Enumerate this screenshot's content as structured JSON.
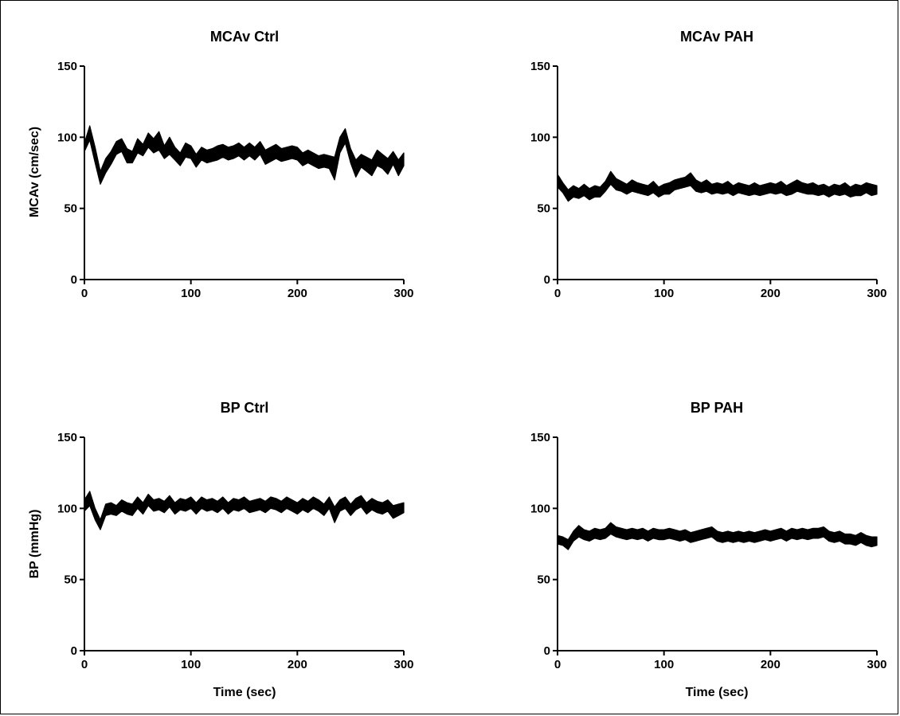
{
  "chart_data": [
    {
      "type": "line",
      "title": "MCAv Ctrl",
      "xlabel": "",
      "ylabel": "MCAv (cm/sec)",
      "xlim": [
        0,
        300
      ],
      "ylim": [
        0,
        150
      ],
      "xticks": [
        "0",
        "100",
        "200",
        "300"
      ],
      "yticks": [
        "0",
        "50",
        "100",
        "150"
      ],
      "grid": false,
      "series": [
        {
          "x": [
            0,
            5,
            10,
            15,
            20,
            25,
            30,
            35,
            40,
            45,
            50,
            55,
            60,
            65,
            70,
            75,
            80,
            85,
            90,
            95,
            100,
            105,
            110,
            115,
            120,
            125,
            130,
            135,
            140,
            145,
            150,
            155,
            160,
            165,
            170,
            175,
            180,
            185,
            190,
            195,
            200,
            205,
            210,
            215,
            220,
            225,
            230,
            235,
            240,
            245,
            250,
            255,
            260,
            265,
            270,
            275,
            280,
            285,
            290,
            295,
            300
          ],
          "upper": [
            96,
            108,
            93,
            76,
            85,
            90,
            97,
            99,
            92,
            90,
            99,
            95,
            103,
            99,
            104,
            94,
            100,
            93,
            89,
            96,
            94,
            88,
            93,
            91,
            92,
            94,
            95,
            93,
            94,
            96,
            93,
            96,
            93,
            97,
            91,
            93,
            95,
            92,
            93,
            94,
            93,
            89,
            91,
            89,
            87,
            88,
            87,
            86,
            100,
            106,
            92,
            84,
            88,
            86,
            84,
            91,
            88,
            85,
            90,
            84,
            89
          ],
          "lower": [
            90,
            98,
            82,
            67,
            75,
            81,
            88,
            90,
            82,
            82,
            89,
            87,
            93,
            89,
            91,
            85,
            88,
            84,
            80,
            86,
            85,
            79,
            84,
            82,
            83,
            84,
            86,
            84,
            85,
            87,
            84,
            87,
            84,
            88,
            81,
            83,
            85,
            83,
            84,
            85,
            84,
            80,
            82,
            80,
            78,
            79,
            78,
            70,
            89,
            96,
            82,
            72,
            79,
            76,
            73,
            80,
            78,
            74,
            81,
            73,
            80
          ]
        }
      ]
    },
    {
      "type": "line",
      "title": "MCAv PAH",
      "xlabel": "",
      "ylabel": "",
      "xlim": [
        0,
        300
      ],
      "ylim": [
        0,
        150
      ],
      "xticks": [
        "0",
        "100",
        "200",
        "300"
      ],
      "yticks": [
        "0",
        "50",
        "100",
        "150"
      ],
      "grid": false,
      "series": [
        {
          "x": [
            0,
            5,
            10,
            15,
            20,
            25,
            30,
            35,
            40,
            45,
            50,
            55,
            60,
            65,
            70,
            75,
            80,
            85,
            90,
            95,
            100,
            105,
            110,
            115,
            120,
            125,
            130,
            135,
            140,
            145,
            150,
            155,
            160,
            165,
            170,
            175,
            180,
            185,
            190,
            195,
            200,
            205,
            210,
            215,
            220,
            225,
            230,
            235,
            240,
            245,
            250,
            255,
            260,
            265,
            270,
            275,
            280,
            285,
            290,
            295,
            300
          ],
          "upper": [
            74,
            68,
            63,
            66,
            64,
            67,
            64,
            66,
            65,
            69,
            76,
            71,
            69,
            67,
            70,
            68,
            67,
            66,
            69,
            65,
            67,
            68,
            70,
            71,
            72,
            75,
            70,
            68,
            70,
            67,
            68,
            67,
            69,
            66,
            68,
            67,
            66,
            68,
            66,
            67,
            68,
            67,
            69,
            66,
            68,
            70,
            68,
            67,
            68,
            66,
            67,
            65,
            67,
            66,
            68,
            65,
            67,
            66,
            68,
            67,
            66
          ],
          "lower": [
            65,
            61,
            55,
            58,
            57,
            59,
            56,
            58,
            58,
            62,
            67,
            63,
            62,
            60,
            62,
            61,
            60,
            59,
            61,
            58,
            60,
            60,
            63,
            64,
            65,
            66,
            62,
            61,
            62,
            60,
            61,
            60,
            61,
            59,
            61,
            60,
            59,
            60,
            59,
            60,
            61,
            60,
            61,
            59,
            60,
            62,
            61,
            60,
            60,
            59,
            60,
            58,
            60,
            59,
            60,
            58,
            59,
            59,
            61,
            59,
            60
          ]
        }
      ]
    },
    {
      "type": "line",
      "title": "BP Ctrl",
      "xlabel": "Time (sec)",
      "ylabel": "BP (mmHg)",
      "xlim": [
        0,
        300
      ],
      "ylim": [
        0,
        150
      ],
      "xticks": [
        "0",
        "100",
        "200",
        "300"
      ],
      "yticks": [
        "0",
        "50",
        "100",
        "150"
      ],
      "grid": false,
      "series": [
        {
          "x": [
            0,
            5,
            10,
            15,
            20,
            25,
            30,
            35,
            40,
            45,
            50,
            55,
            60,
            65,
            70,
            75,
            80,
            85,
            90,
            95,
            100,
            105,
            110,
            115,
            120,
            125,
            130,
            135,
            140,
            145,
            150,
            155,
            160,
            165,
            170,
            175,
            180,
            185,
            190,
            195,
            200,
            205,
            210,
            215,
            220,
            225,
            230,
            235,
            240,
            245,
            250,
            255,
            260,
            265,
            270,
            275,
            280,
            285,
            290,
            295,
            300
          ],
          "upper": [
            106,
            112,
            100,
            92,
            103,
            104,
            102,
            106,
            104,
            103,
            108,
            104,
            110,
            106,
            107,
            105,
            109,
            104,
            107,
            106,
            108,
            104,
            108,
            106,
            107,
            105,
            108,
            104,
            107,
            106,
            108,
            105,
            106,
            107,
            105,
            108,
            107,
            105,
            108,
            106,
            104,
            107,
            105,
            108,
            106,
            103,
            108,
            101,
            106,
            108,
            103,
            107,
            109,
            104,
            107,
            105,
            104,
            106,
            102,
            103,
            104
          ],
          "lower": [
            98,
            102,
            92,
            85,
            95,
            96,
            95,
            98,
            96,
            95,
            100,
            96,
            102,
            98,
            99,
            97,
            101,
            96,
            99,
            98,
            100,
            96,
            100,
            98,
            99,
            97,
            100,
            96,
            99,
            98,
            100,
            97,
            98,
            99,
            97,
            100,
            99,
            97,
            100,
            98,
            96,
            99,
            97,
            100,
            98,
            95,
            100,
            90,
            98,
            100,
            95,
            99,
            101,
            96,
            99,
            97,
            96,
            98,
            93,
            95,
            97
          ]
        }
      ]
    },
    {
      "type": "line",
      "title": "BP PAH",
      "xlabel": "Time (sec)",
      "ylabel": "",
      "xlim": [
        0,
        300
      ],
      "ylim": [
        0,
        150
      ],
      "xticks": [
        "0",
        "100",
        "200",
        "300"
      ],
      "yticks": [
        "0",
        "50",
        "100",
        "150"
      ],
      "grid": false,
      "series": [
        {
          "x": [
            0,
            5,
            10,
            15,
            20,
            25,
            30,
            35,
            40,
            45,
            50,
            55,
            60,
            65,
            70,
            75,
            80,
            85,
            90,
            95,
            100,
            105,
            110,
            115,
            120,
            125,
            130,
            135,
            140,
            145,
            150,
            155,
            160,
            165,
            170,
            175,
            180,
            185,
            190,
            195,
            200,
            205,
            210,
            215,
            220,
            225,
            230,
            235,
            240,
            245,
            250,
            255,
            260,
            265,
            270,
            275,
            280,
            285,
            290,
            295,
            300
          ],
          "upper": [
            81,
            80,
            78,
            84,
            88,
            85,
            84,
            86,
            85,
            86,
            90,
            87,
            86,
            85,
            86,
            85,
            86,
            84,
            86,
            85,
            85,
            86,
            85,
            84,
            85,
            83,
            84,
            85,
            86,
            87,
            84,
            83,
            84,
            83,
            84,
            83,
            84,
            83,
            84,
            85,
            84,
            85,
            86,
            84,
            86,
            85,
            86,
            85,
            86,
            86,
            87,
            84,
            83,
            84,
            82,
            82,
            81,
            83,
            81,
            80,
            80
          ],
          "lower": [
            75,
            74,
            71,
            77,
            80,
            78,
            77,
            79,
            78,
            79,
            82,
            80,
            79,
            78,
            79,
            78,
            79,
            77,
            79,
            78,
            78,
            79,
            78,
            77,
            78,
            76,
            77,
            78,
            79,
            80,
            77,
            76,
            77,
            76,
            77,
            76,
            77,
            76,
            77,
            78,
            77,
            78,
            79,
            77,
            79,
            78,
            79,
            78,
            79,
            79,
            80,
            77,
            76,
            77,
            75,
            75,
            74,
            76,
            74,
            73,
            74
          ]
        }
      ]
    }
  ]
}
